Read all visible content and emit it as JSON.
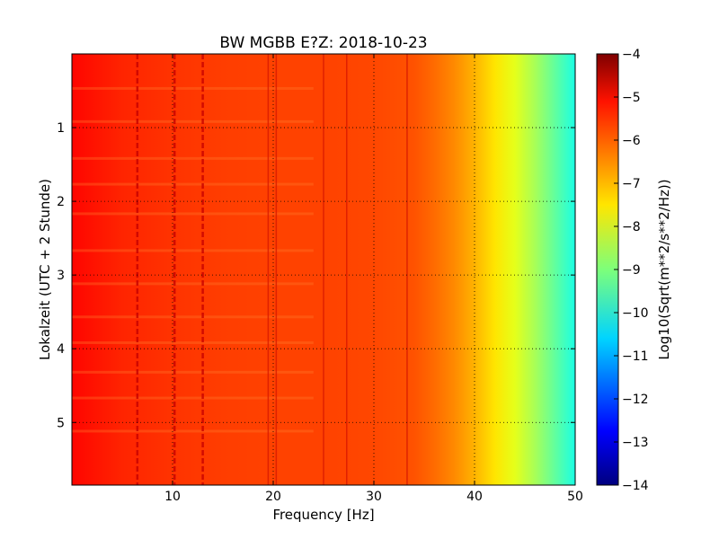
{
  "chart_data": {
    "type": "heatmap",
    "title": "BW MGBB E?Z: 2018-10-23",
    "xlabel": "Frequency [Hz]",
    "ylabel": "Lokalzeit (UTC + 2 Stunde)",
    "xlim": [
      0,
      50
    ],
    "ylim": [
      5.85,
      0
    ],
    "x_ticks": [
      10,
      20,
      30,
      40,
      50
    ],
    "x_tick_labels": [
      "10",
      "20",
      "30",
      "40",
      "50"
    ],
    "y_ticks": [
      1,
      2,
      3,
      4,
      5
    ],
    "y_tick_labels": [
      "1",
      "2",
      "3",
      "4",
      "5"
    ],
    "grid": true,
    "colormap": "jet",
    "colorbar": {
      "label": "Log10(Sqrt(m**2/s**2/Hz))",
      "range": [
        -14,
        -4
      ],
      "ticks": [
        -4,
        -5,
        -6,
        -7,
        -8,
        -9,
        -10,
        -11,
        -12,
        -13,
        -14
      ],
      "tick_labels": [
        "−4",
        "−5",
        "−6",
        "−7",
        "−8",
        "−9",
        "−10",
        "−11",
        "−12",
        "−13",
        "−14"
      ]
    },
    "spectral_profile": {
      "frequency_hz": [
        0,
        5,
        10,
        15,
        20,
        25,
        30,
        34,
        36,
        38,
        40,
        42,
        44,
        46,
        48,
        50
      ],
      "value": [
        -5.3,
        -5.6,
        -5.75,
        -5.85,
        -5.9,
        -5.9,
        -5.95,
        -6.05,
        -6.3,
        -6.6,
        -7.0,
        -7.5,
        -8.0,
        -8.6,
        -9.3,
        -10.0
      ]
    },
    "line_features_hz": [
      6.5,
      10.2,
      13.0,
      19.5,
      20.3,
      25.0,
      27.3,
      33.3
    ]
  }
}
